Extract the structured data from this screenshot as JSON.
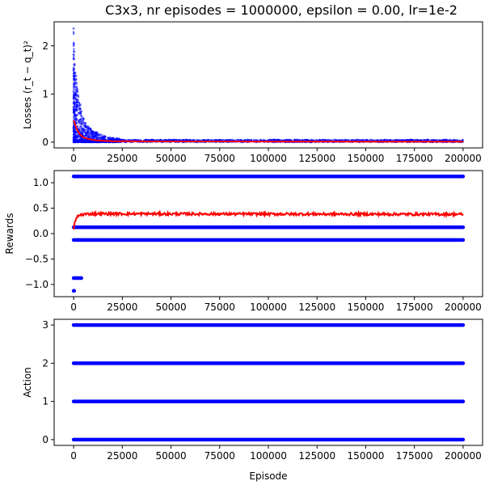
{
  "chart_data": [
    {
      "type": "scatter",
      "title": "C3x3, nr episodes = 1000000, epsilon = 0.00, lr=1e-2",
      "xlabel": "",
      "ylabel": "Losses (r_t − q_t)²",
      "xlim": [
        -10000,
        210000
      ],
      "ylim": [
        -0.12,
        2.5
      ],
      "xticks": [
        0,
        25000,
        50000,
        75000,
        100000,
        125000,
        150000,
        175000,
        200000
      ],
      "yticks": [
        0,
        1,
        2
      ],
      "grid": false,
      "series": [
        {
          "color": "#0000ff",
          "kind": "points",
          "description_values": {
            "peak_points": [
              [
                0,
                2.36
              ],
              [
                300,
                1.88
              ],
              [
                500,
                1.6
              ],
              [
                1200,
                1.38
              ],
              [
                2000,
                1.1
              ],
              [
                3500,
                0.78
              ],
              [
                5000,
                0.5
              ],
              [
                8000,
                0.3
              ],
              [
                12000,
                0.2
              ],
              [
                16000,
                0.12
              ],
              [
                22000,
                0.08
              ]
            ],
            "baseline_band": [
              0.0,
              0.05
            ],
            "x_end": 200000
          }
        },
        {
          "color": "#ff0000",
          "kind": "line",
          "x": [
            0,
            500,
            1000,
            2000,
            3000,
            5000,
            8000,
            12000,
            20000,
            40000,
            200000
          ],
          "y": [
            0.45,
            0.4,
            0.33,
            0.24,
            0.17,
            0.1,
            0.06,
            0.035,
            0.02,
            0.015,
            0.01
          ]
        }
      ]
    },
    {
      "type": "scatter",
      "title": "",
      "xlabel": "",
      "ylabel": "Rewards",
      "xlim": [
        -10000,
        210000
      ],
      "ylim": [
        -1.24,
        1.24
      ],
      "xticks": [
        0,
        25000,
        50000,
        75000,
        100000,
        125000,
        150000,
        175000,
        200000
      ],
      "yticks": [
        -1.0,
        -0.5,
        0.0,
        0.5,
        1.0
      ],
      "grid": false,
      "series": [
        {
          "color": "#0000ff",
          "kind": "levels",
          "levels": [
            {
              "y": 1.125,
              "x": [
                0,
                200000
              ]
            },
            {
              "y": 0.125,
              "x": [
                0,
                200000
              ]
            },
            {
              "y": -0.125,
              "x": [
                0,
                200000
              ]
            },
            {
              "y": -0.875,
              "x": [
                0,
                4000
              ]
            },
            {
              "y": -1.125,
              "x": [
                0,
                300
              ]
            }
          ]
        },
        {
          "color": "#ff0000",
          "kind": "line",
          "x": [
            0,
            500,
            1000,
            2000,
            3000,
            5000,
            10000,
            200000
          ],
          "y": [
            0.1,
            0.2,
            0.27,
            0.33,
            0.36,
            0.38,
            0.39,
            0.38
          ],
          "noise": 0.025
        }
      ]
    },
    {
      "type": "scatter",
      "title": "",
      "xlabel": "Episode",
      "ylabel": "Action",
      "xlim": [
        -10000,
        210000
      ],
      "ylim": [
        -0.15,
        3.15
      ],
      "xticks": [
        0,
        25000,
        50000,
        75000,
        100000,
        125000,
        150000,
        175000,
        200000
      ],
      "yticks": [
        0,
        1,
        2,
        3
      ],
      "grid": false,
      "series": [
        {
          "color": "#0000ff",
          "kind": "levels",
          "levels": [
            {
              "y": 0,
              "x": [
                0,
                200000
              ]
            },
            {
              "y": 1,
              "x": [
                0,
                200000
              ]
            },
            {
              "y": 2,
              "x": [
                0,
                200000
              ]
            },
            {
              "y": 3,
              "x": [
                0,
                200000
              ]
            }
          ]
        }
      ]
    }
  ]
}
